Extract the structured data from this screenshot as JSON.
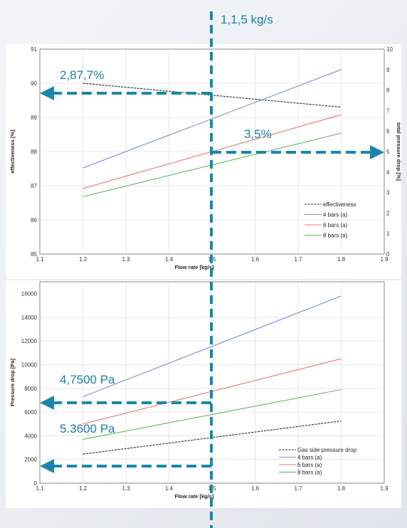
{
  "overlay": {
    "vertical_label": "1,1,5 kg/s",
    "top_left_label": "2,87,7%",
    "top_right_label": "3,5%",
    "bottom_upper_label": "4,7500 Pa",
    "bottom_lower_label": "5.3600 Pa",
    "color": "#1b86ad"
  },
  "chart_data": [
    {
      "type": "line",
      "xlabel": "Flow rate  [kg/s]",
      "ylabel": "effectiveness  [%]",
      "y2label": "total pressure drop  [%]",
      "xlim": [
        1.1,
        1.9
      ],
      "ylim": [
        85,
        91
      ],
      "y2lim": [
        0,
        10
      ],
      "xticks": [
        "1.1",
        "1.2",
        "1.3",
        "1.4",
        "1.5",
        "1.6",
        "1.7",
        "1.8",
        "1.9"
      ],
      "yticks": [
        "85",
        "86",
        "87",
        "88",
        "89",
        "90",
        "91"
      ],
      "y2ticks": [
        "0",
        "1",
        "2",
        "3",
        "4",
        "5",
        "6",
        "7",
        "8",
        "9",
        "10"
      ],
      "grid": true,
      "legend_position": "bottom-right",
      "series": [
        {
          "name": "effectiveness",
          "axis": "left",
          "color": "#222222",
          "dash": "3 1.5",
          "x": [
            1.2,
            1.8
          ],
          "y": [
            90.0,
            89.3
          ]
        },
        {
          "name": "4 bars (a)",
          "axis": "right",
          "color": "#7a8fd0",
          "dash": "",
          "x": [
            1.2,
            1.8
          ],
          "y": [
            4.2,
            9.0
          ]
        },
        {
          "name": "6 bars (a)",
          "axis": "right",
          "color": "#f07070",
          "dash": "",
          "x": [
            1.2,
            1.8
          ],
          "y": [
            3.2,
            6.8
          ]
        },
        {
          "name": "8 bars (a)",
          "axis": "right",
          "color": "#5cb85c",
          "dash": "",
          "x": [
            1.2,
            1.8
          ],
          "y": [
            2.8,
            5.9
          ]
        }
      ]
    },
    {
      "type": "line",
      "xlabel": "Flow rate  [kg/s]",
      "ylabel": "Pressure drop  [Pa]",
      "xlim": [
        1.1,
        1.9
      ],
      "ylim": [
        0,
        17000
      ],
      "xticks": [
        "1.1",
        "1.2",
        "1.3",
        "1.4",
        "1.5",
        "1.6",
        "1.7",
        "1.8",
        "1.9"
      ],
      "yticks": [
        "0",
        "2000",
        "4000",
        "6000",
        "8000",
        "10000",
        "12000",
        "14000",
        "16000"
      ],
      "grid": true,
      "legend_position": "bottom-right",
      "series": [
        {
          "name": "Gas side pressure drop",
          "color": "#222222",
          "dash": "3 1.5",
          "x": [
            1.2,
            1.8
          ],
          "y": [
            2450,
            5250
          ]
        },
        {
          "name": "4 bars (a)",
          "color": "#7a8fd0",
          "dash": "",
          "x": [
            1.2,
            1.8
          ],
          "y": [
            7300,
            15800
          ]
        },
        {
          "name": "6 bars (a)",
          "color": "#f07070",
          "dash": "",
          "x": [
            1.2,
            1.8
          ],
          "y": [
            5000,
            10500
          ]
        },
        {
          "name": "8 bars (a)",
          "color": "#5cb85c",
          "dash": "",
          "x": [
            1.2,
            1.8
          ],
          "y": [
            3700,
            7900
          ]
        }
      ]
    }
  ]
}
